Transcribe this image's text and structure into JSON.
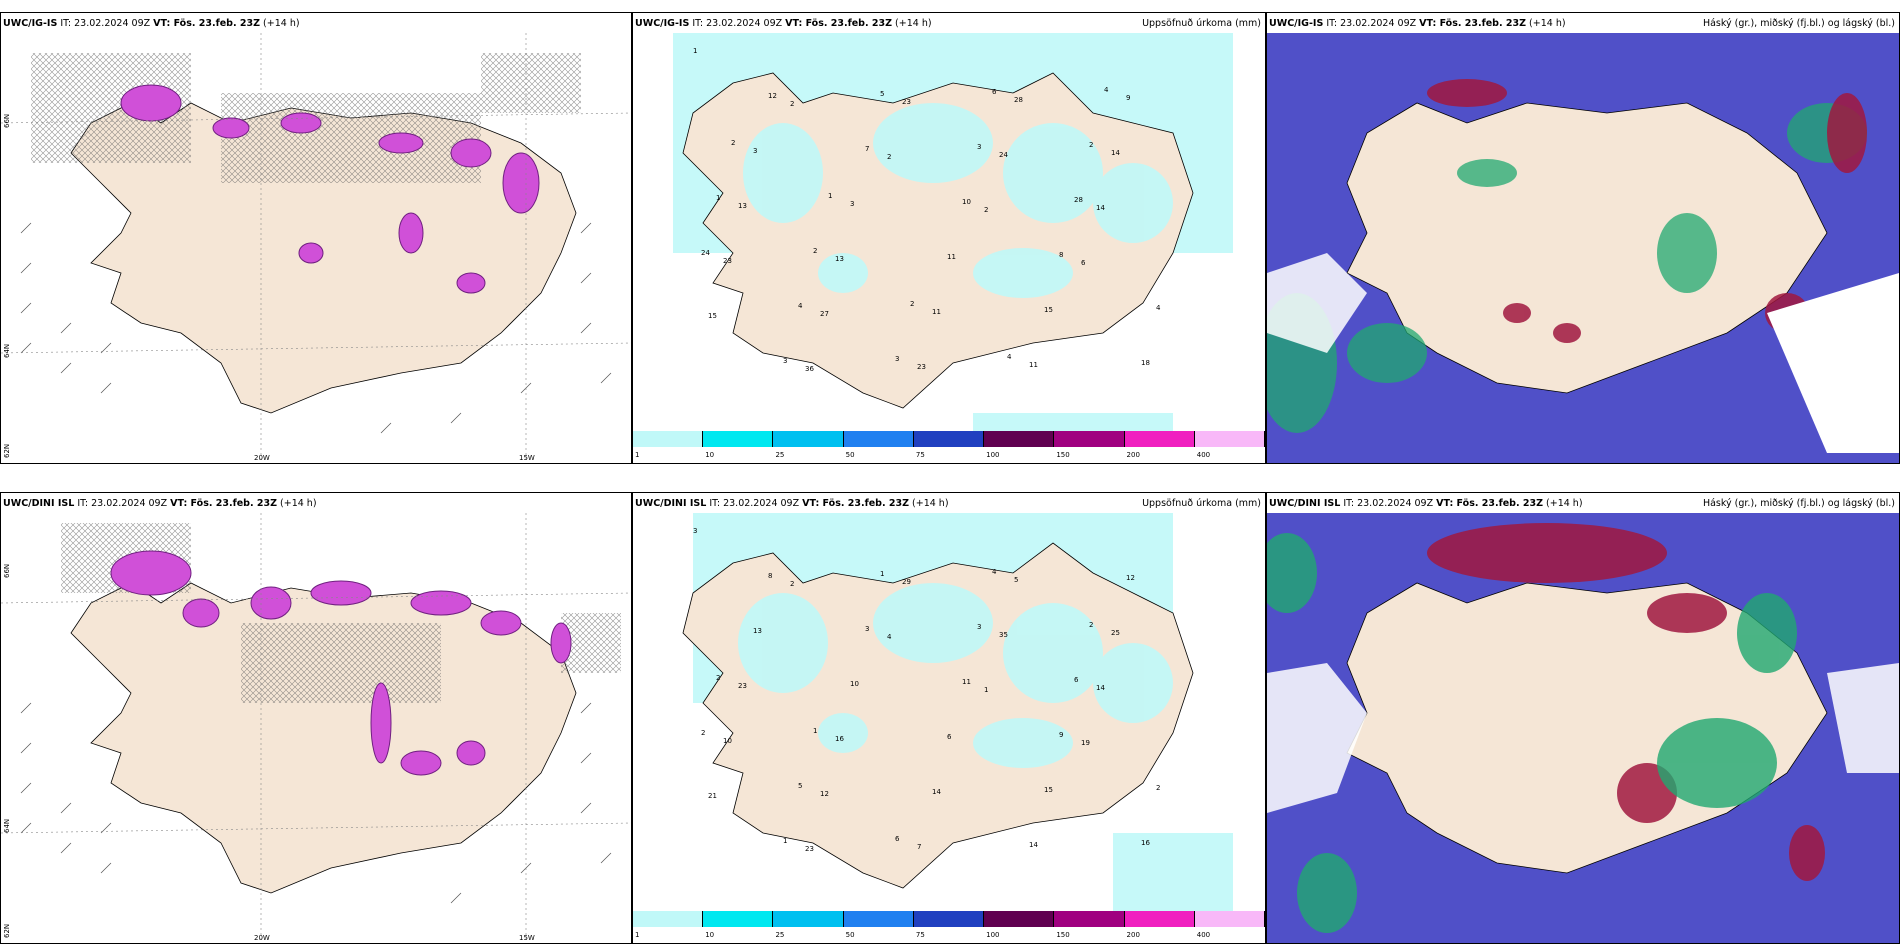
{
  "rows": [
    {
      "panels": [
        {
          "model": "UWC/IG-IS",
          "it": "IT: 23.02.2024 09Z",
          "vt": "VT: Fös. 23.feb. 23Z",
          "lead": "(+14 h)",
          "legend": ""
        },
        {
          "model": "UWC/IG-IS",
          "it": "IT: 23.02.2024 09Z",
          "vt": "VT: Fös. 23.feb. 23Z",
          "lead": "(+14 h)",
          "legend": "Uppsöfnuð úrkoma (mm)"
        },
        {
          "model": "UWC/IG-IS",
          "it": "IT: 23.02.2024 09Z",
          "vt": "VT: Fös. 23.feb. 23Z",
          "lead": "(+14 h)",
          "legend": "Háský (gr.), miðský (fj.bl.) og lágský (bl.)"
        }
      ]
    },
    {
      "panels": [
        {
          "model": "UWC/DINI ISL",
          "it": "IT: 23.02.2024 09Z",
          "vt": "VT: Fös. 23.feb. 23Z",
          "lead": "(+14 h)",
          "legend": ""
        },
        {
          "model": "UWC/DINI ISL",
          "it": "IT: 23.02.2024 09Z",
          "vt": "VT: Fös. 23.feb. 23Z",
          "lead": "(+14 h)",
          "legend": "Uppsöfnuð úrkoma (mm)"
        },
        {
          "model": "UWC/DINI ISL",
          "it": "IT: 23.02.2024 09Z",
          "vt": "VT: Fös. 23.feb. 23Z",
          "lead": "(+14 h)",
          "legend": "Háský (gr.), miðský (fj.bl.) og lágský (bl.)"
        }
      ]
    }
  ],
  "axes": {
    "lon_a": "20W",
    "lon_b": "15W",
    "lat_a": "66N",
    "lat_b": "64N",
    "lat_c": "62N"
  },
  "precip_colorbar": {
    "labels": [
      "1",
      "10",
      "25",
      "50",
      "75",
      "100",
      "150",
      "200",
      "400"
    ],
    "colors": [
      "#c0f8f8",
      "#00e8f0",
      "#00c0f0",
      "#2080f0",
      "#2040c0",
      "#600050",
      "#a00080",
      "#f020c0",
      "#f8b8f8"
    ]
  },
  "precip_labels_top": [
    "1",
    "2",
    "2",
    "2",
    "6",
    "15",
    "36",
    "23",
    "24",
    "14",
    "23",
    "27",
    "23",
    "28",
    "14",
    "13",
    "13",
    "11",
    "11",
    "9",
    "3",
    "3",
    "11",
    "15",
    "18",
    "12",
    "7",
    "10",
    "8",
    "4",
    "3",
    "5",
    "3",
    "28",
    "24",
    "4",
    "3",
    "6",
    "2",
    "1",
    "2",
    "2",
    "4",
    "4",
    "2",
    "1"
  ],
  "precip_labels_bottom": [
    "3",
    "2",
    "4",
    "1",
    "19",
    "21",
    "23",
    "29",
    "35",
    "14",
    "10",
    "12",
    "7",
    "5",
    "25",
    "23",
    "16",
    "14",
    "14",
    "12",
    "13",
    "10",
    "6",
    "15",
    "16",
    "8",
    "3",
    "11",
    "9",
    "2",
    "1",
    "1",
    "3",
    "6",
    "2",
    "5",
    "6",
    "4",
    "2",
    "2",
    "1"
  ],
  "colors": {
    "land": "#f5e6d6",
    "precip_light": "#c0f8f8",
    "snow": "#d050d8",
    "cloud_high": "#5050c8",
    "cloud_mid": "#20a870",
    "cloud_low": "#a01840"
  }
}
